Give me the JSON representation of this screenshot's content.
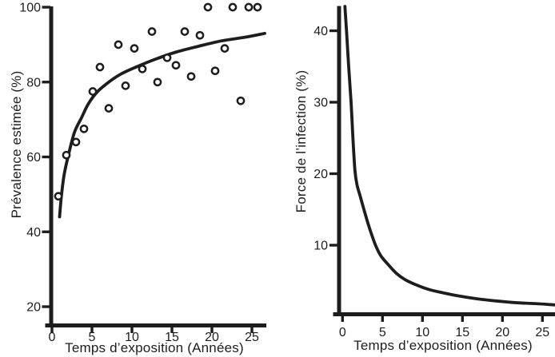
{
  "figure": {
    "background": "#ffffff",
    "ink": "#1d1d1d",
    "marker": {
      "shape": "open-circle",
      "fill": "#ffffff"
    }
  },
  "chart_data": [
    {
      "panel": "left",
      "type": "scatter",
      "title": "",
      "xlabel": "Temps d’exposition (Années)",
      "ylabel": "Prévalence estimée (%)",
      "xlim": [
        0,
        26.5
      ],
      "ylim": [
        17,
        101
      ],
      "x_ticks": [
        0,
        5,
        10,
        15,
        20,
        25
      ],
      "y_ticks": [
        20,
        40,
        60,
        80,
        100
      ],
      "grid": false,
      "legend": null,
      "points": [
        [
          0.8,
          49.5
        ],
        [
          1.8,
          60.5
        ],
        [
          3.0,
          64.0
        ],
        [
          4.0,
          67.5
        ],
        [
          5.1,
          77.5
        ],
        [
          6.0,
          84.0
        ],
        [
          7.1,
          73.0
        ],
        [
          8.3,
          90.0
        ],
        [
          9.2,
          79.0
        ],
        [
          10.3,
          89.0
        ],
        [
          11.3,
          83.5
        ],
        [
          12.5,
          93.5
        ],
        [
          13.2,
          80.0
        ],
        [
          14.4,
          86.5
        ],
        [
          15.5,
          84.5
        ],
        [
          16.6,
          93.5
        ],
        [
          17.4,
          81.5
        ],
        [
          18.5,
          92.5
        ],
        [
          19.5,
          100.0
        ],
        [
          20.4,
          83.0
        ],
        [
          21.6,
          89.0
        ],
        [
          22.6,
          100.0
        ],
        [
          23.6,
          75.0
        ],
        [
          24.6,
          100.0
        ],
        [
          25.7,
          100.0
        ]
      ],
      "fit_curve": [
        [
          0.95,
          44.0
        ],
        [
          1.15,
          49.0
        ],
        [
          1.5,
          55.0
        ],
        [
          2.0,
          60.0
        ],
        [
          2.8,
          66.5
        ],
        [
          3.7,
          70.5
        ],
        [
          4.5,
          74.0
        ],
        [
          5.5,
          77.0
        ],
        [
          6.8,
          79.5
        ],
        [
          8.5,
          82.0
        ],
        [
          10.5,
          84.0
        ],
        [
          12.8,
          86.0
        ],
        [
          15.5,
          88.0
        ],
        [
          18.2,
          89.5
        ],
        [
          21.2,
          91.0
        ],
        [
          24.2,
          92.0
        ],
        [
          26.6,
          93.0
        ]
      ]
    },
    {
      "panel": "right",
      "type": "line",
      "title": "",
      "xlabel": "Temps d’exposition (Années)",
      "ylabel": "Force de l’infection (%)",
      "xlim": [
        0,
        26.5
      ],
      "ylim": [
        0,
        43.5
      ],
      "x_ticks": [
        0,
        5,
        10,
        15,
        20,
        25
      ],
      "y_ticks": [
        10,
        20,
        30,
        40
      ],
      "grid": false,
      "legend": null,
      "curve": [
        [
          0.3,
          43.4
        ],
        [
          0.5,
          40.0
        ],
        [
          0.77,
          35.0
        ],
        [
          1.07,
          30.0
        ],
        [
          1.3,
          25.0
        ],
        [
          1.55,
          20.5
        ],
        [
          1.8,
          18.5
        ],
        [
          2.2,
          16.9
        ],
        [
          2.7,
          14.9
        ],
        [
          3.2,
          13.0
        ],
        [
          3.7,
          11.3
        ],
        [
          4.2,
          9.8
        ],
        [
          4.8,
          8.5
        ],
        [
          5.7,
          7.3
        ],
        [
          6.7,
          6.1
        ],
        [
          7.8,
          5.2
        ],
        [
          9.2,
          4.45
        ],
        [
          10.8,
          3.8
        ],
        [
          12.5,
          3.35
        ],
        [
          14.5,
          2.9
        ],
        [
          16.8,
          2.5
        ],
        [
          19.2,
          2.2
        ],
        [
          21.8,
          1.95
        ],
        [
          24.5,
          1.8
        ],
        [
          26.5,
          1.65
        ]
      ]
    }
  ]
}
